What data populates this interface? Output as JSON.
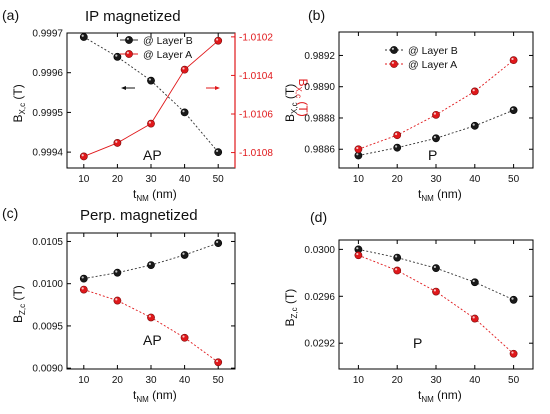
{
  "figure": {
    "panel_a_heading": "IP magnetized",
    "panel_c_heading": "Perp. magnetized"
  },
  "chart_data": [
    {
      "panel": "(a)",
      "type": "line",
      "x": [
        10,
        20,
        30,
        40,
        50
      ],
      "xlabel": "t",
      "xlabel_sub": "NM",
      "xlabel_unit": " (nm)",
      "xlim": [
        5,
        55
      ],
      "xticks": [
        10,
        20,
        30,
        40,
        50
      ],
      "ylabel": "B",
      "ylabel_sub": "X,c",
      "ylabel_unit": " (T)",
      "ylim": [
        0.99936,
        0.9997
      ],
      "yticks": [
        "0.9994",
        "0.9995",
        "0.9996",
        "0.9997"
      ],
      "y2label": "B",
      "y2label_sub": "X,c",
      "y2label_unit": " (T)",
      "y2lim": [
        -1.01088,
        -1.01018
      ],
      "y2ticks": [
        "-1.0102",
        "-1.0104",
        "-1.0106",
        "-1.0108"
      ],
      "y2color": "#e0181b",
      "annotation": "AP",
      "legend_position": "top-center",
      "series": [
        {
          "name": "@ Layer B",
          "axis": "left",
          "color": "#111111",
          "values": [
            0.99969,
            0.99964,
            0.99958,
            0.9995,
            0.9994
          ]
        },
        {
          "name": "@ Layer A",
          "axis": "right",
          "color": "#e0181b",
          "values": [
            -1.01082,
            -1.01075,
            -1.01065,
            -1.01037,
            -1.01022
          ]
        }
      ]
    },
    {
      "panel": "(b)",
      "type": "line",
      "x": [
        10,
        20,
        30,
        40,
        50
      ],
      "xlabel": "t",
      "xlabel_sub": "NM",
      "xlabel_unit": " (nm)",
      "xlim": [
        5,
        55
      ],
      "xticks": [
        10,
        20,
        30,
        40,
        50
      ],
      "ylabel": "B",
      "ylabel_sub": "X,c",
      "ylabel_unit": " (T)",
      "ylim": [
        0.98848,
        0.98935
      ],
      "yticks": [
        "0.9886",
        "0.9888",
        "0.9890",
        "0.9892"
      ],
      "annotation": "P",
      "legend_position": "top-center",
      "series": [
        {
          "name": "@ Layer B",
          "color": "#111111",
          "values": [
            0.98856,
            0.98861,
            0.98867,
            0.98875,
            0.98885
          ]
        },
        {
          "name": "@ Layer A",
          "color": "#e0181b",
          "values": [
            0.9886,
            0.98869,
            0.98882,
            0.98897,
            0.98917
          ]
        }
      ]
    },
    {
      "panel": "(c)",
      "type": "line",
      "x": [
        10,
        20,
        30,
        40,
        50
      ],
      "xlabel": "t",
      "xlabel_sub": "NM",
      "xlabel_unit": " (nm)",
      "xlim": [
        5,
        55
      ],
      "xticks": [
        10,
        20,
        30,
        40,
        50
      ],
      "ylabel": "B",
      "ylabel_sub": "Z,c",
      "ylabel_unit": " (T)",
      "ylim": [
        0.00899,
        0.0106
      ],
      "yticks": [
        "0.0090",
        "0.0095",
        "0.0100",
        "0.0105"
      ],
      "annotation": "AP",
      "series": [
        {
          "color": "#111111",
          "values": [
            0.01006,
            0.01013,
            0.01022,
            0.01034,
            0.01048
          ]
        },
        {
          "color": "#e0181b",
          "values": [
            0.00993,
            0.0098,
            0.0096,
            0.00936,
            0.00907
          ]
        }
      ]
    },
    {
      "panel": "(d)",
      "type": "line",
      "x": [
        10,
        20,
        30,
        40,
        50
      ],
      "xlabel": "t",
      "xlabel_sub": "NM",
      "xlabel_unit": " (nm)",
      "xlim": [
        5,
        55
      ],
      "xticks": [
        10,
        20,
        30,
        40,
        50
      ],
      "ylabel": "B",
      "ylabel_sub": "Z,c",
      "ylabel_unit": " (T)",
      "ylim": [
        0.02898,
        0.03008
      ],
      "yticks": [
        "0.0292",
        "0.0296",
        "0.0300"
      ],
      "annotation": "P",
      "series": [
        {
          "color": "#111111",
          "values": [
            0.03,
            0.02993,
            0.02984,
            0.02972,
            0.02957
          ]
        },
        {
          "color": "#e0181b",
          "values": [
            0.02995,
            0.02982,
            0.02964,
            0.02941,
            0.02911
          ]
        }
      ]
    }
  ]
}
